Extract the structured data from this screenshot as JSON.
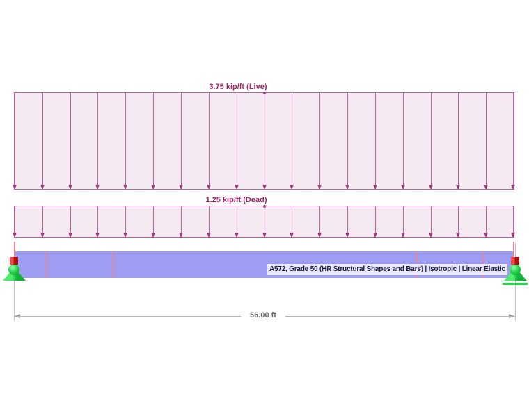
{
  "scene": {
    "loads": [
      {
        "label": "3.75 kip/ft (Live)",
        "value_kip_per_ft": 3.75,
        "load_case": "Live",
        "direction": "down",
        "arrow_count": 19
      },
      {
        "label": "1.25 kip/ft (Dead)",
        "value_kip_per_ft": 1.25,
        "load_case": "Dead",
        "direction": "down",
        "arrow_count": 19
      }
    ],
    "beam": {
      "material_label": "A572, Grade 50 (HR Structural Shapes and Bars) | Isotropic | Linear Elastic"
    },
    "dimension": {
      "label": "56.00 ft",
      "span_ft": 56.0
    },
    "supports": [
      {
        "side": "left",
        "type": "pinned"
      },
      {
        "side": "right",
        "type": "roller"
      }
    ],
    "colors": {
      "load_area_fill": "#f5eaf2",
      "load_outline": "#b2649e",
      "load_arrow": "#a03a80",
      "load_label_text": "#a52567",
      "beam_fill": "#9d9df2",
      "beam_tick_pink": "#ee8296",
      "support_green": "#25d647",
      "node_red": "#d81f1f",
      "dimension_line": "#b3b3b7",
      "dimension_text": "#6d6d75",
      "material_label_text": "#1c1c42"
    }
  }
}
